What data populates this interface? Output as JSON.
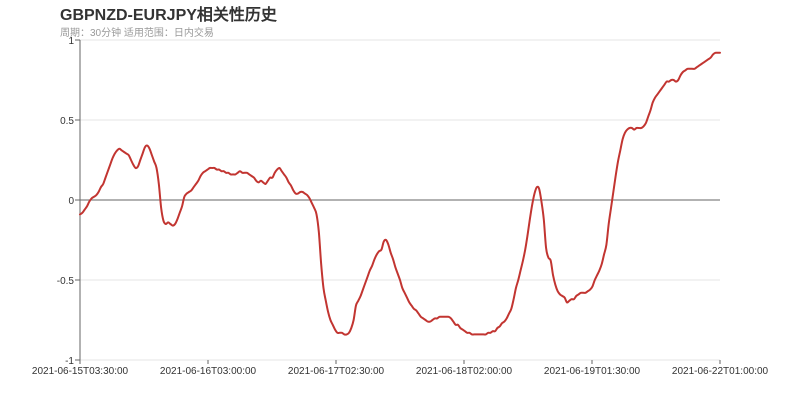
{
  "chart_data": {
    "type": "line",
    "title": "GBPNZD-EURJPY相关性历史",
    "subtitle": "周期：30分钟 适用范围：日内交易",
    "ylim": [
      -1,
      1
    ],
    "y_ticks": [
      "1",
      "0.5",
      "0",
      "-0.5",
      "-1"
    ],
    "y_tick_values": [
      1,
      0.5,
      0,
      -0.5,
      -1
    ],
    "x_tick_labels": [
      "2021-06-15T03:30:00",
      "2021-06-16T03:00:00",
      "2021-06-17T02:30:00",
      "2021-06-18T02:00:00",
      "2021-06-19T01:30:00",
      "2021-06-22T01:00:00"
    ],
    "grid": true,
    "legend": "none",
    "line_color": "#c23531",
    "series": [
      {
        "values": [
          -0.09,
          -0.08,
          -0.06,
          -0.04,
          -0.01,
          0.01,
          0.02,
          0.03,
          0.05,
          0.08,
          0.1,
          0.14,
          0.18,
          0.22,
          0.26,
          0.29,
          0.31,
          0.32,
          0.31,
          0.3,
          0.29,
          0.28,
          0.25,
          0.22,
          0.2,
          0.21,
          0.25,
          0.29,
          0.33,
          0.34,
          0.32,
          0.28,
          0.24,
          0.2,
          0.1,
          -0.05,
          -0.13,
          -0.15,
          -0.14,
          -0.15,
          -0.16,
          -0.15,
          -0.12,
          -0.08,
          -0.04,
          0.02,
          0.04,
          0.05,
          0.06,
          0.08,
          0.1,
          0.12,
          0.15,
          0.17,
          0.18,
          0.19,
          0.2,
          0.2,
          0.2,
          0.19,
          0.19,
          0.18,
          0.18,
          0.17,
          0.17,
          0.16,
          0.16,
          0.16,
          0.17,
          0.18,
          0.17,
          0.17,
          0.17,
          0.16,
          0.15,
          0.14,
          0.12,
          0.11,
          0.12,
          0.11,
          0.1,
          0.12,
          0.14,
          0.14,
          0.17,
          0.19,
          0.2,
          0.18,
          0.16,
          0.14,
          0.11,
          0.09,
          0.06,
          0.04,
          0.04,
          0.05,
          0.05,
          0.04,
          0.03,
          0.01,
          -0.02,
          -0.05,
          -0.09,
          -0.2,
          -0.4,
          -0.55,
          -0.63,
          -0.7,
          -0.75,
          -0.78,
          -0.81,
          -0.83,
          -0.83,
          -0.83,
          -0.84,
          -0.84,
          -0.83,
          -0.8,
          -0.75,
          -0.66,
          -0.63,
          -0.6,
          -0.56,
          -0.52,
          -0.48,
          -0.44,
          -0.41,
          -0.37,
          -0.34,
          -0.32,
          -0.31,
          -0.26,
          -0.25,
          -0.28,
          -0.33,
          -0.37,
          -0.42,
          -0.46,
          -0.5,
          -0.55,
          -0.58,
          -0.61,
          -0.64,
          -0.66,
          -0.68,
          -0.69,
          -0.71,
          -0.73,
          -0.74,
          -0.75,
          -0.76,
          -0.76,
          -0.75,
          -0.74,
          -0.74,
          -0.73,
          -0.73,
          -0.73,
          -0.73,
          -0.73,
          -0.74,
          -0.76,
          -0.78,
          -0.78,
          -0.8,
          -0.81,
          -0.82,
          -0.83,
          -0.83,
          -0.84,
          -0.84,
          -0.84,
          -0.84,
          -0.84,
          -0.84,
          -0.84,
          -0.83,
          -0.83,
          -0.82,
          -0.82,
          -0.8,
          -0.79,
          -0.77,
          -0.76,
          -0.74,
          -0.71,
          -0.68,
          -0.62,
          -0.55,
          -0.5,
          -0.44,
          -0.38,
          -0.31,
          -0.22,
          -0.12,
          -0.03,
          0.04,
          0.08,
          0.07,
          -0.01,
          -0.12,
          -0.3,
          -0.36,
          -0.38,
          -0.47,
          -0.53,
          -0.57,
          -0.59,
          -0.6,
          -0.61,
          -0.64,
          -0.63,
          -0.62,
          -0.62,
          -0.6,
          -0.59,
          -0.58,
          -0.58,
          -0.58,
          -0.57,
          -0.56,
          -0.54,
          -0.5,
          -0.47,
          -0.44,
          -0.4,
          -0.34,
          -0.28,
          -0.15,
          -0.05,
          0.05,
          0.15,
          0.24,
          0.31,
          0.38,
          0.42,
          0.44,
          0.45,
          0.45,
          0.44,
          0.45,
          0.45,
          0.45,
          0.46,
          0.48,
          0.52,
          0.56,
          0.61,
          0.64,
          0.66,
          0.68,
          0.7,
          0.72,
          0.74,
          0.74,
          0.75,
          0.75,
          0.74,
          0.75,
          0.78,
          0.8,
          0.81,
          0.82,
          0.82,
          0.82,
          0.82,
          0.83,
          0.84,
          0.85,
          0.86,
          0.87,
          0.88,
          0.89,
          0.91,
          0.92,
          0.92,
          0.92
        ]
      }
    ]
  }
}
